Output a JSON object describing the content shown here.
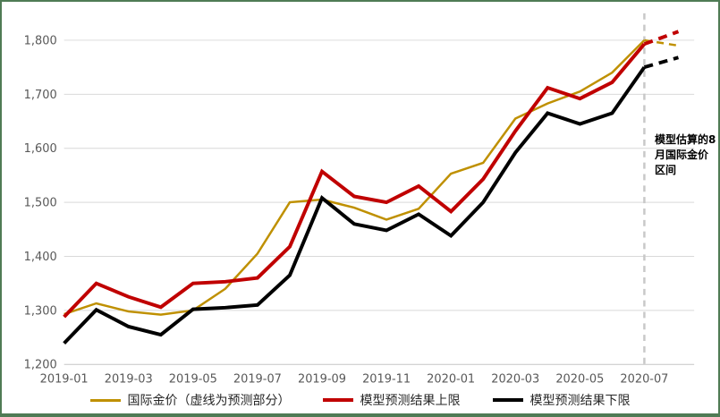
{
  "chart_data": {
    "type": "line",
    "title": "",
    "x_labels": [
      "2019-01",
      "2019-02",
      "2019-03",
      "2019-04",
      "2019-05",
      "2019-06",
      "2019-07",
      "2019-08",
      "2019-09",
      "2019-10",
      "2019-11",
      "2019-12",
      "2020-01",
      "2020-02",
      "2020-03",
      "2020-04",
      "2020-05",
      "2020-06",
      "2020-07"
    ],
    "x_tick_step": 2,
    "x_tick_labels": [
      "2019-01",
      "2019-03",
      "2019-05",
      "2019-07",
      "2019-09",
      "2019-11",
      "2020-01",
      "2020-03",
      "2020-05",
      "2020-07"
    ],
    "yticks": [
      1200,
      1300,
      1400,
      1500,
      1600,
      1700,
      1800
    ],
    "ytick_labels": [
      "1,200",
      "1,300",
      "1,400",
      "1,500",
      "1,600",
      "1,700",
      "1,800"
    ],
    "ylim": [
      1200,
      1800
    ],
    "grid": true,
    "legend_position": "bottom",
    "forecast_month": "2020-08",
    "series": [
      {
        "name": "国际金价（虚线为预测部分）",
        "color": "#BF9000",
        "stroke_width": 2.5,
        "forecast_dash": "8 6",
        "values": [
          1293,
          1313,
          1298,
          1292,
          1300,
          1340,
          1405,
          1500,
          1505,
          1490,
          1468,
          1488,
          1553,
          1573,
          1655,
          1683,
          1705,
          1740,
          1800
        ],
        "forecast_value": 1790
      },
      {
        "name": "模型预测结果上限",
        "color": "#C00000",
        "stroke_width": 4,
        "forecast_dash": "10 7",
        "values": [
          1288,
          1350,
          1325,
          1306,
          1350,
          1353,
          1360,
          1418,
          1557,
          1511,
          1500,
          1530,
          1483,
          1543,
          1632,
          1712,
          1692,
          1722,
          1793
        ],
        "forecast_value": 1816
      },
      {
        "name": "模型预测结果下限",
        "color": "#000000",
        "stroke_width": 4,
        "forecast_dash": "10 7",
        "values": [
          1239,
          1301,
          1270,
          1255,
          1302,
          1305,
          1310,
          1365,
          1508,
          1460,
          1448,
          1478,
          1438,
          1500,
          1592,
          1665,
          1645,
          1665,
          1750
        ],
        "forecast_value": 1768
      }
    ],
    "divider": {
      "at_label": "2020-07",
      "style": "dashed",
      "color": "#C8C8C8"
    },
    "annotation": {
      "text": "模型估算的8\n月国际金价\n区间"
    }
  },
  "theme": {
    "frame_border": "#4F7B55",
    "gridline": "#D9D9D9",
    "axis_line": "#C6C6C6",
    "tick_label": "#595959",
    "legend_text": "#262626",
    "background": "#FFFFFF"
  }
}
